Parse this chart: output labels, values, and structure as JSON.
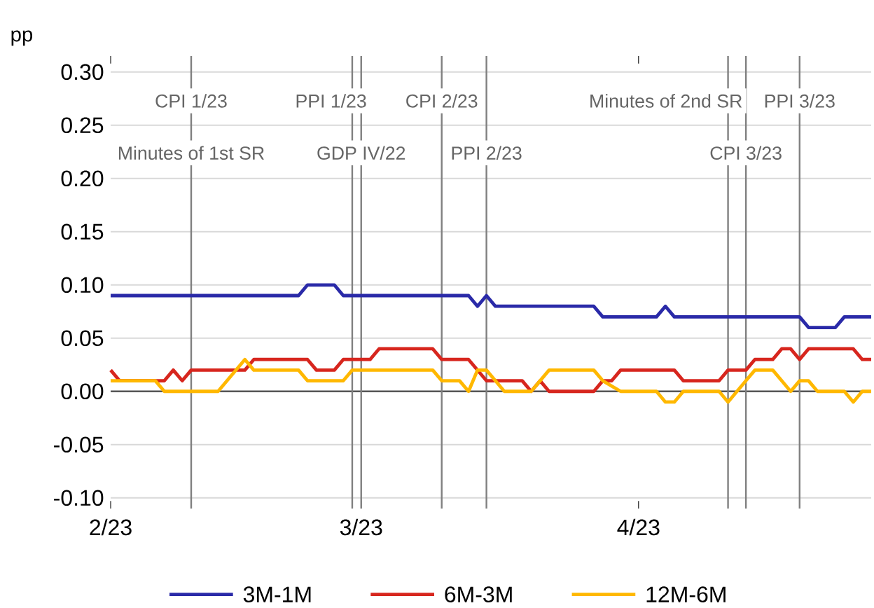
{
  "chart_data": {
    "type": "line",
    "ylabel": "pp",
    "xlim": [
      "2023-02-01",
      "2023-04-27"
    ],
    "ylim": [
      -0.11,
      0.315
    ],
    "xticks": [
      {
        "value": "2023-02-01",
        "label": "2/23"
      },
      {
        "value": "2023-03-01",
        "label": "3/23"
      },
      {
        "value": "2023-04-01",
        "label": "4/23"
      }
    ],
    "yticks": [
      {
        "value": -0.1,
        "label": "-0.10"
      },
      {
        "value": -0.05,
        "label": "-0.05"
      },
      {
        "value": 0,
        "label": "0.00"
      },
      {
        "value": 0.05,
        "label": "0.05"
      },
      {
        "value": 0.1,
        "label": "0.10"
      },
      {
        "value": 0.15,
        "label": "0.15"
      },
      {
        "value": 0.2,
        "label": "0.20"
      },
      {
        "value": 0.25,
        "label": "0.25"
      },
      {
        "value": 0.3,
        "label": "0.30"
      }
    ],
    "annotations": [
      {
        "text": "Minutes of 1st SR",
        "x": "2023-02-10"
      }
    ],
    "grid": "y",
    "legend": "bottom",
    "marker": "none",
    "line_style": "solid",
    "series": [
      {
        "name": "3M-1M",
        "color": "#2a2aa8",
        "x": [
          "2023-02-01",
          "2023-02-22",
          "2023-02-23",
          "2023-02-26",
          "2023-02-27",
          "2023-03-13",
          "2023-03-14",
          "2023-03-15",
          "2023-03-16",
          "2023-03-27",
          "2023-03-28",
          "2023-04-03",
          "2023-04-04",
          "2023-04-05",
          "2023-04-19",
          "2023-04-20",
          "2023-04-23",
          "2023-04-24",
          "2023-04-27"
        ],
        "values": [
          0.09,
          0.09,
          0.1,
          0.1,
          0.09,
          0.09,
          0.08,
          0.09,
          0.08,
          0.08,
          0.07,
          0.07,
          0.08,
          0.07,
          0.07,
          0.06,
          0.06,
          0.07,
          0.07
        ]
      },
      {
        "name": "6M-3M",
        "color": "#d7261e",
        "x": [
          "2023-02-01",
          "2023-02-02",
          "2023-02-07",
          "2023-02-08",
          "2023-02-09",
          "2023-02-10",
          "2023-02-16",
          "2023-02-17",
          "2023-02-23",
          "2023-02-24",
          "2023-02-26",
          "2023-02-27",
          "2023-03-02",
          "2023-03-03",
          "2023-03-09",
          "2023-03-10",
          "2023-03-13",
          "2023-03-14",
          "2023-03-15",
          "2023-03-19",
          "2023-03-20",
          "2023-03-21",
          "2023-03-22",
          "2023-03-27",
          "2023-03-28",
          "2023-03-29",
          "2023-03-30",
          "2023-04-05",
          "2023-04-06",
          "2023-04-10",
          "2023-04-11",
          "2023-04-13",
          "2023-04-14",
          "2023-04-16",
          "2023-04-17",
          "2023-04-18",
          "2023-04-19",
          "2023-04-20",
          "2023-04-25",
          "2023-04-26",
          "2023-04-27"
        ],
        "values": [
          0.02,
          0.01,
          0.01,
          0.02,
          0.01,
          0.02,
          0.02,
          0.03,
          0.03,
          0.02,
          0.02,
          0.03,
          0.03,
          0.04,
          0.04,
          0.03,
          0.03,
          0.02,
          0.01,
          0.01,
          0.0,
          0.01,
          0.0,
          0.0,
          0.01,
          0.01,
          0.02,
          0.02,
          0.01,
          0.01,
          0.02,
          0.02,
          0.03,
          0.03,
          0.04,
          0.04,
          0.03,
          0.04,
          0.04,
          0.03,
          0.03
        ]
      },
      {
        "name": "12M-6M",
        "color": "#ffb800",
        "x": [
          "2023-02-01",
          "2023-02-06",
          "2023-02-07",
          "2023-02-13",
          "2023-02-16",
          "2023-02-17",
          "2023-02-22",
          "2023-02-23",
          "2023-02-27",
          "2023-02-28",
          "2023-03-09",
          "2023-03-10",
          "2023-03-12",
          "2023-03-13",
          "2023-03-14",
          "2023-03-15",
          "2023-03-16",
          "2023-03-17",
          "2023-03-20",
          "2023-03-22",
          "2023-03-27",
          "2023-03-28",
          "2023-03-30",
          "2023-04-03",
          "2023-04-04",
          "2023-04-05",
          "2023-04-06",
          "2023-04-10",
          "2023-04-11",
          "2023-04-13",
          "2023-04-14",
          "2023-04-16",
          "2023-04-17",
          "2023-04-18",
          "2023-04-19",
          "2023-04-20",
          "2023-04-21",
          "2023-04-24",
          "2023-04-25",
          "2023-04-26",
          "2023-04-27"
        ],
        "values": [
          0.01,
          0.01,
          0.0,
          0.0,
          0.03,
          0.02,
          0.02,
          0.01,
          0.01,
          0.02,
          0.02,
          0.01,
          0.01,
          0.0,
          0.02,
          0.02,
          0.01,
          0.0,
          0.0,
          0.02,
          0.02,
          0.01,
          0.0,
          0.0,
          -0.01,
          -0.01,
          0.0,
          0.0,
          -0.01,
          0.01,
          0.02,
          0.02,
          0.01,
          0.0,
          0.01,
          0.01,
          0.0,
          0.0,
          -0.01,
          0.0,
          0.0
        ]
      }
    ],
    "ref_lines": [
      {
        "axis": "y",
        "value": 0,
        "color": "#555555"
      },
      {
        "axis": "x",
        "value": "2023-02-10",
        "label": "CPI 1/23",
        "color": "#808080"
      },
      {
        "axis": "x",
        "value": "2023-02-28",
        "label": "PPI 1/23",
        "color": "#808080"
      },
      {
        "axis": "x",
        "value": "2023-03-01",
        "label": "GDP IV/22",
        "color": "#808080"
      },
      {
        "axis": "x",
        "value": "2023-03-10",
        "label": "CPI 2/23",
        "color": "#808080"
      },
      {
        "axis": "x",
        "value": "2023-03-15",
        "label": "PPI 2/23",
        "color": "#808080"
      },
      {
        "axis": "x",
        "value": "2023-04-11",
        "label": "Minutes of 2nd SR",
        "color": "#808080"
      },
      {
        "axis": "x",
        "value": "2023-04-13",
        "label": "CPI 3/23",
        "color": "#808080"
      },
      {
        "axis": "x",
        "value": "2023-04-19",
        "label": "PPI 3/23",
        "color": "#808080"
      }
    ]
  }
}
